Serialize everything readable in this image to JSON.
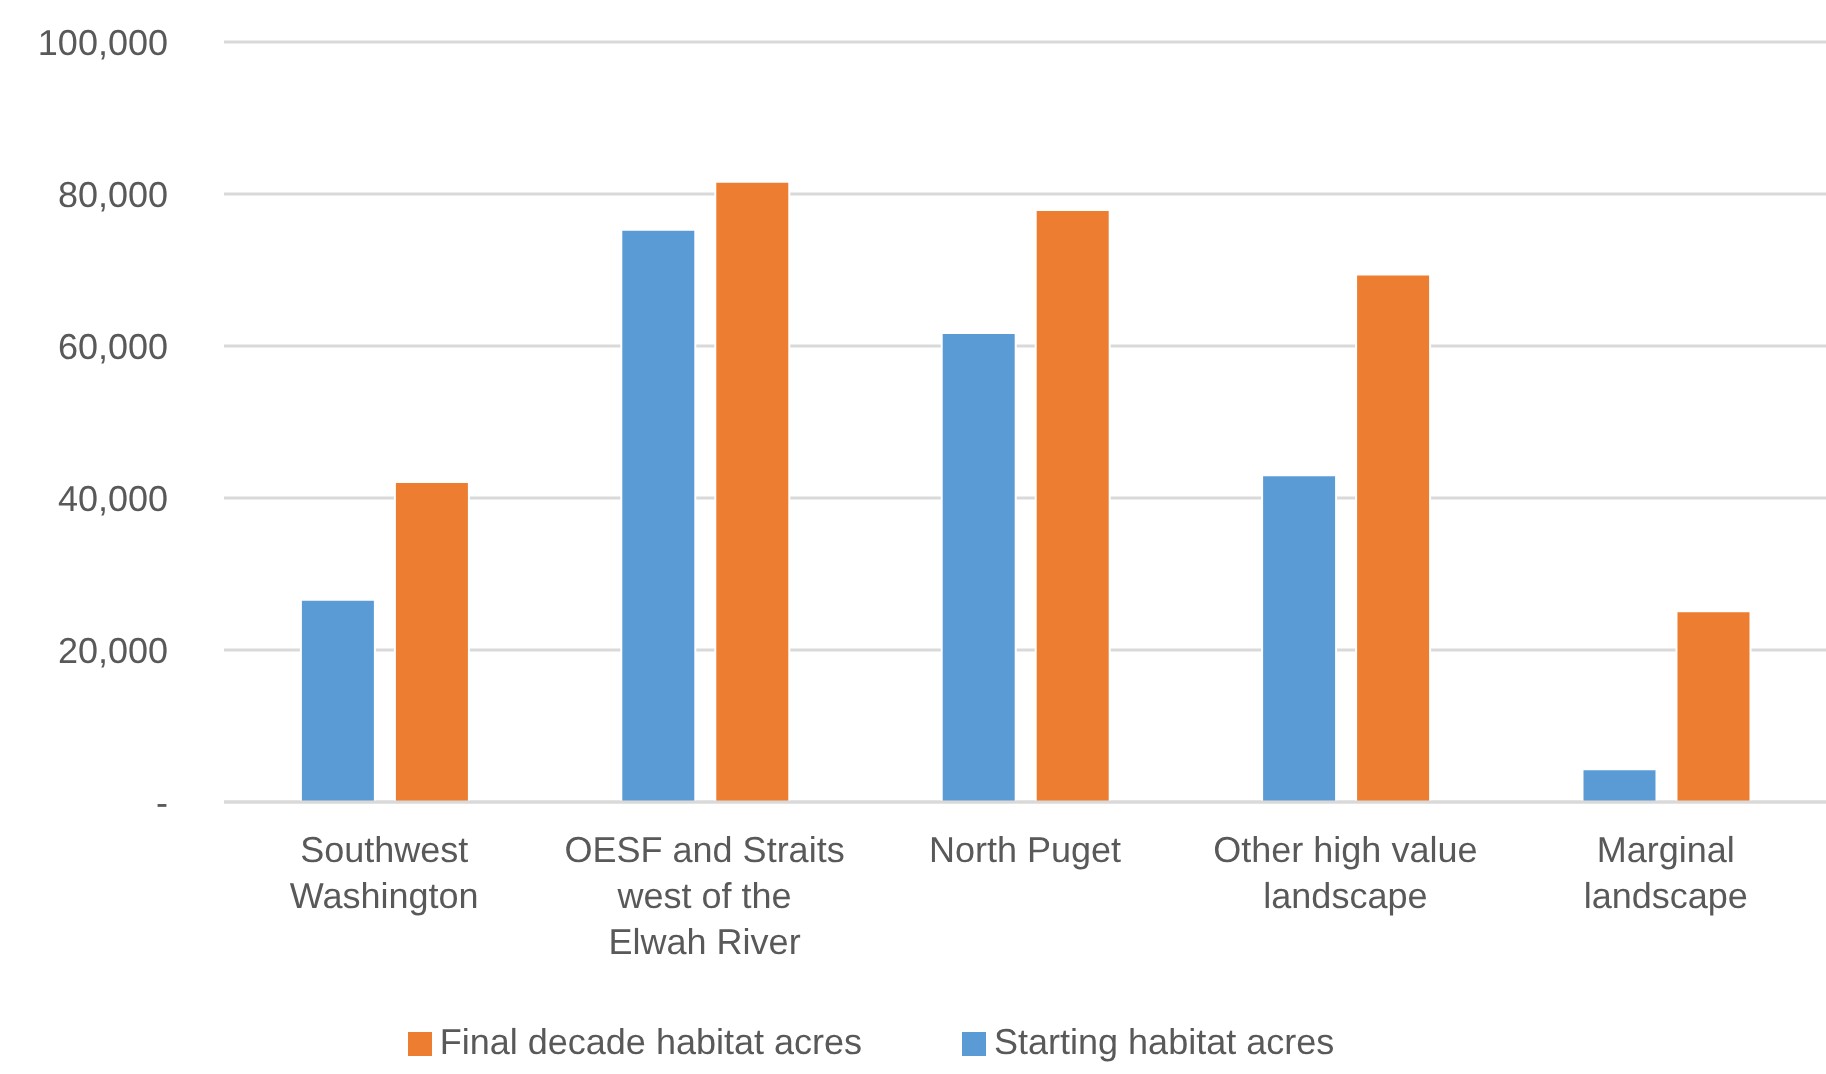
{
  "chart_data": {
    "type": "bar",
    "categories": [
      "Southwest Washington",
      "OESF and Straits west of the Elwah River",
      "North Puget",
      "Other high value landscape",
      "Marginal landscape"
    ],
    "series": [
      {
        "name": "Starting habitat acres",
        "color": "#5b9bd5",
        "values": [
          26600,
          75300,
          61700,
          43000,
          4300
        ]
      },
      {
        "name": "Final decade habitat acres",
        "color": "#ed7d31",
        "values": [
          42100,
          81600,
          77900,
          69400,
          25100
        ]
      }
    ],
    "ylim": [
      0,
      100000
    ],
    "yticks": [
      {
        "value": 0,
        "label": "-"
      },
      {
        "value": 20000,
        "label": "20,000"
      },
      {
        "value": 40000,
        "label": "40,000"
      },
      {
        "value": 60000,
        "label": "60,000"
      },
      {
        "value": 80000,
        "label": "80,000"
      },
      {
        "value": 100000,
        "label": "100,000"
      }
    ],
    "grid": "y",
    "legend": "bottom"
  }
}
